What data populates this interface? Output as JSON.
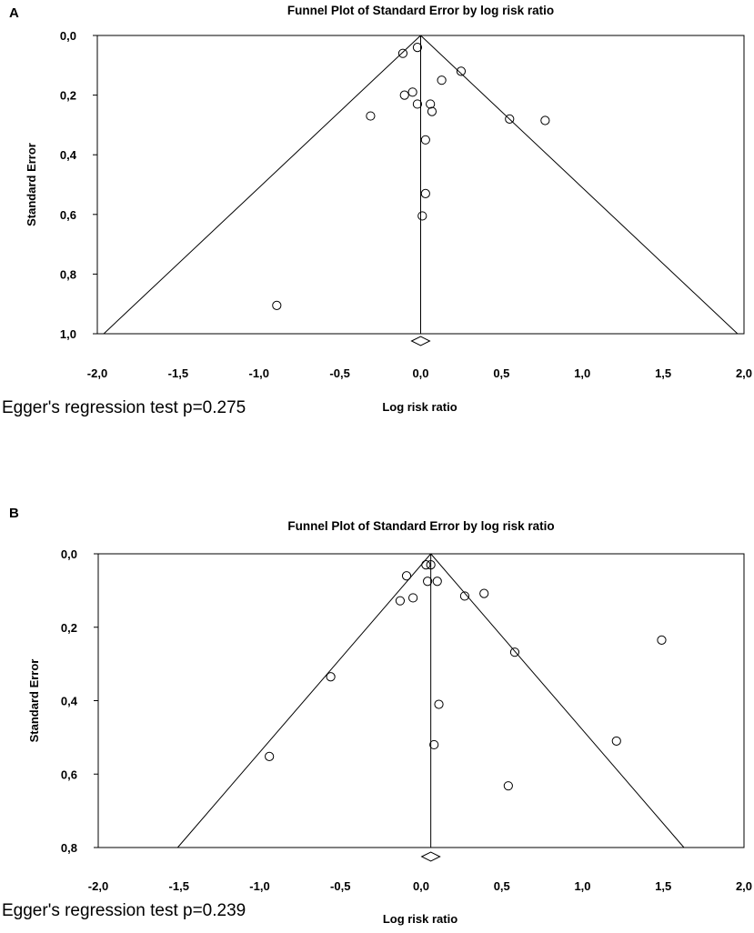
{
  "chart_data": [
    {
      "panel_label": "A",
      "type": "scatter",
      "title": "Funnel Plot of Standard Error by log risk ratio",
      "xlabel": "Log risk ratio",
      "ylabel": "Standard Error",
      "xlim": [
        -2.0,
        2.0
      ],
      "ylim": [
        0.0,
        1.0
      ],
      "x_ticks": [
        "-2,0",
        "-1,5",
        "-1,0",
        "-0,5",
        "0,0",
        "0,5",
        "1,0",
        "1,5",
        "2,0"
      ],
      "x_tick_values": [
        -2.0,
        -1.5,
        -1.0,
        -0.5,
        0.0,
        0.5,
        1.0,
        1.5,
        2.0
      ],
      "y_ticks": [
        "0,0",
        "0,2",
        "0,4",
        "0,6",
        "0,8",
        "1,0"
      ],
      "y_tick_values": [
        0.0,
        0.2,
        0.4,
        0.6,
        0.8,
        1.0
      ],
      "pooled_estimate": 0.0,
      "funnel_z": 1.96,
      "points": [
        {
          "x": -0.11,
          "y": 0.06
        },
        {
          "x": -0.02,
          "y": 0.04
        },
        {
          "x": 0.25,
          "y": 0.12
        },
        {
          "x": 0.13,
          "y": 0.15
        },
        {
          "x": -0.05,
          "y": 0.19
        },
        {
          "x": -0.1,
          "y": 0.2
        },
        {
          "x": -0.02,
          "y": 0.23
        },
        {
          "x": 0.06,
          "y": 0.23
        },
        {
          "x": 0.07,
          "y": 0.255
        },
        {
          "x": -0.31,
          "y": 0.27
        },
        {
          "x": 0.55,
          "y": 0.28
        },
        {
          "x": 0.77,
          "y": 0.285
        },
        {
          "x": 0.03,
          "y": 0.35
        },
        {
          "x": 0.03,
          "y": 0.53
        },
        {
          "x": 0.01,
          "y": 0.605
        },
        {
          "x": -0.89,
          "y": 0.905
        }
      ],
      "egger_text": "Egger's regression test p=0.275"
    },
    {
      "panel_label": "B",
      "type": "scatter",
      "title": "Funnel Plot of Standard Error by log risk ratio",
      "xlabel": "Log risk ratio",
      "ylabel": "Standard Error",
      "xlim": [
        -2.0,
        2.0
      ],
      "ylim": [
        0.0,
        0.8
      ],
      "x_ticks": [
        "-2,0",
        "-1,5",
        "-1,0",
        "-0,5",
        "0,0",
        "0,5",
        "1,0",
        "1,5",
        "2,0"
      ],
      "x_tick_values": [
        -2.0,
        -1.5,
        -1.0,
        -0.5,
        0.0,
        0.5,
        1.0,
        1.5,
        2.0
      ],
      "y_ticks": [
        "0,0",
        "0,2",
        "0,4",
        "0,6",
        "0,8"
      ],
      "y_tick_values": [
        0.0,
        0.2,
        0.4,
        0.6,
        0.8
      ],
      "pooled_estimate": 0.06,
      "funnel_z": 1.96,
      "points": [
        {
          "x": 0.03,
          "y": 0.03
        },
        {
          "x": 0.06,
          "y": 0.03
        },
        {
          "x": -0.09,
          "y": 0.06
        },
        {
          "x": 0.04,
          "y": 0.075
        },
        {
          "x": 0.1,
          "y": 0.075
        },
        {
          "x": 0.27,
          "y": 0.115
        },
        {
          "x": 0.39,
          "y": 0.108
        },
        {
          "x": -0.13,
          "y": 0.128
        },
        {
          "x": -0.05,
          "y": 0.12
        },
        {
          "x": 1.49,
          "y": 0.235
        },
        {
          "x": 0.58,
          "y": 0.268
        },
        {
          "x": -0.56,
          "y": 0.335
        },
        {
          "x": 0.11,
          "y": 0.41
        },
        {
          "x": 1.21,
          "y": 0.51
        },
        {
          "x": 0.08,
          "y": 0.52
        },
        {
          "x": -0.94,
          "y": 0.552
        },
        {
          "x": 0.54,
          "y": 0.632
        }
      ],
      "egger_text": "Egger's regression test p=0.239"
    }
  ]
}
